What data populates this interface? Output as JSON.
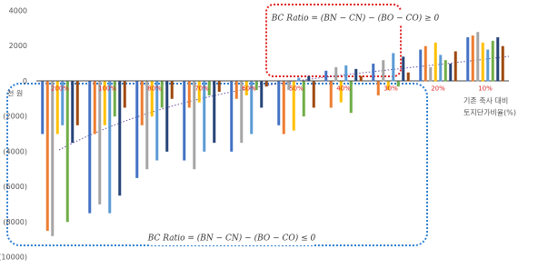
{
  "chart_data": {
    "type": "bar",
    "y_unit_label": "천 원",
    "x_axis_label": [
      "기존 축사 대비",
      "토지단가비율(%)"
    ],
    "annotations": [
      "BC Ratio = (BN − CN) − (BO − CO) ≥ 0",
      "BC Ratio = (BN − CN) − (BO − CO) ≤ 0"
    ],
    "categories": [
      "200%",
      "100%",
      "80%",
      "70%",
      "60%",
      "50%",
      "40%",
      "30%",
      "20%",
      "10%"
    ],
    "series": [
      {
        "color": "#4472c4",
        "values": [
          -3000,
          -7500,
          -5500,
          -4500,
          -4000,
          -2500,
          600,
          1000,
          1800,
          2500
        ]
      },
      {
        "color": "#ed7d31",
        "values": [
          -8500,
          -3000,
          -2500,
          -1500,
          -1000,
          -3000,
          -1500,
          -800,
          2000,
          2600
        ]
      },
      {
        "color": "#a5a5a5",
        "values": [
          -8800,
          -7000,
          -5000,
          -5000,
          -3500,
          -500,
          800,
          1200,
          800,
          2800
        ]
      },
      {
        "color": "#ffc000",
        "values": [
          -3000,
          -2500,
          -2000,
          -1200,
          -800,
          -2800,
          -1200,
          -500,
          2200,
          2200
        ]
      },
      {
        "color": "#5b9bd5",
        "values": [
          -2500,
          -7500,
          -4500,
          -4000,
          -3000,
          200,
          900,
          1600,
          1500,
          1800
        ]
      },
      {
        "color": "#70ad47",
        "values": [
          -8000,
          -2000,
          -1500,
          -800,
          -500,
          -2000,
          -1800,
          -300,
          1200,
          2300
        ]
      },
      {
        "color": "#264478",
        "values": [
          -3500,
          -6500,
          -4000,
          -3500,
          -1500,
          300,
          700,
          1400,
          1000,
          2500
        ]
      },
      {
        "color": "#9e480e",
        "values": [
          -2500,
          -1500,
          -1000,
          -600,
          -300,
          -1500,
          300,
          500,
          1700,
          2000
        ]
      }
    ],
    "ylim": [
      -10000,
      4000
    ],
    "yticks": [
      {
        "value": -10000,
        "label": "(10000)"
      },
      {
        "value": -8000,
        "label": "(8000)"
      },
      {
        "value": -6000,
        "label": "(6000)"
      },
      {
        "value": -4000,
        "label": "(4000)"
      },
      {
        "value": -2000,
        "label": "(2000)"
      },
      0,
      2000,
      4000
    ],
    "grid": false
  }
}
